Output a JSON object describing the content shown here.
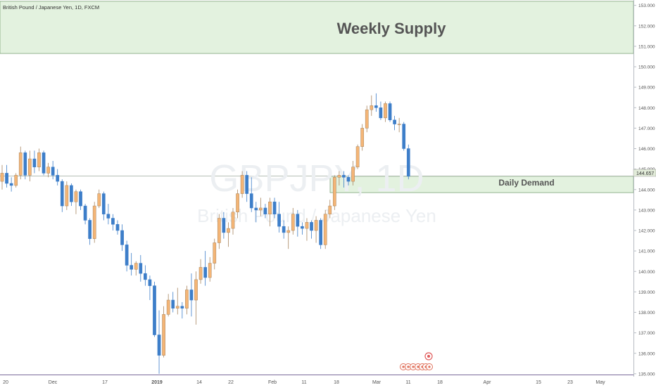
{
  "header": {
    "symbol_line": "British Pound / Japanese Yen, 1D, FXCM"
  },
  "watermark": {
    "ticker": "GBPJPY, 1D",
    "name": "British Pound / Japanese Yen"
  },
  "zones": [
    {
      "label": "Weekly Supply",
      "from": 150.65,
      "to": 153.2,
      "color": "#e3f2df"
    },
    {
      "label": "Daily Demand",
      "from": 143.85,
      "to": 144.65,
      "color": "#e3f2df"
    }
  ],
  "price_label": "144.657",
  "colors": {
    "up": "#f4b576",
    "down": "#3d7ec9",
    "zone_border": "#7fa57a"
  },
  "chart_data": {
    "type": "candlestick",
    "title": "British Pound / Japanese Yen, 1D, FXCM",
    "ylim": [
      135,
      153.2
    ],
    "y_ticks": [
      "135.000",
      "136.000",
      "137.000",
      "138.000",
      "139.000",
      "140.000",
      "141.000",
      "142.000",
      "143.000",
      "144.000",
      "145.000",
      "146.000",
      "147.000",
      "148.000",
      "149.000",
      "150.000",
      "151.000",
      "152.000",
      "153.000"
    ],
    "x_labels": [
      "20",
      "Dec",
      "17",
      "2019",
      "14",
      "22",
      "Feb",
      "11",
      "18",
      "Mar",
      "11",
      "18",
      "Apr",
      "15",
      "23",
      "May"
    ],
    "current_price": 144.657,
    "candles": [
      [
        144.4,
        145.2,
        144.0,
        144.8
      ],
      [
        144.8,
        145.2,
        144.1,
        144.3
      ],
      [
        144.3,
        144.6,
        143.9,
        144.2
      ],
      [
        144.2,
        144.8,
        144.1,
        144.7
      ],
      [
        144.7,
        146.1,
        144.5,
        145.8
      ],
      [
        145.8,
        145.9,
        144.5,
        144.7
      ],
      [
        144.7,
        145.9,
        144.4,
        145.5
      ],
      [
        145.5,
        145.9,
        144.8,
        145.1
      ],
      [
        145.1,
        146.0,
        144.9,
        145.8
      ],
      [
        145.8,
        145.9,
        144.7,
        144.8
      ],
      [
        144.8,
        145.3,
        144.6,
        145.1
      ],
      [
        145.1,
        145.4,
        144.5,
        144.7
      ],
      [
        144.7,
        145.0,
        144.2,
        144.4
      ],
      [
        144.4,
        144.5,
        142.9,
        143.2
      ],
      [
        143.2,
        144.4,
        143.0,
        144.2
      ],
      [
        144.2,
        144.3,
        143.2,
        143.4
      ],
      [
        143.4,
        144.0,
        142.8,
        143.9
      ],
      [
        143.9,
        144.0,
        143.0,
        143.2
      ],
      [
        143.2,
        143.3,
        142.3,
        142.5
      ],
      [
        142.5,
        142.6,
        141.3,
        141.6
      ],
      [
        141.6,
        143.4,
        141.4,
        143.2
      ],
      [
        143.2,
        144.0,
        143.1,
        143.8
      ],
      [
        143.8,
        143.9,
        142.5,
        142.8
      ],
      [
        142.8,
        143.3,
        142.3,
        142.6
      ],
      [
        142.6,
        142.8,
        142.0,
        142.3
      ],
      [
        142.3,
        142.5,
        141.8,
        142.0
      ],
      [
        142.0,
        142.3,
        141.0,
        141.3
      ],
      [
        141.3,
        141.5,
        140.0,
        140.3
      ],
      [
        140.3,
        140.9,
        139.8,
        140.1
      ],
      [
        140.1,
        140.5,
        139.8,
        140.4
      ],
      [
        140.4,
        140.8,
        139.5,
        139.9
      ],
      [
        139.9,
        140.3,
        139.3,
        139.6
      ],
      [
        139.6,
        139.8,
        138.6,
        139.3
      ],
      [
        139.3,
        139.5,
        136.8,
        136.9
      ],
      [
        136.9,
        138.1,
        135.0,
        135.9
      ],
      [
        135.9,
        138.3,
        135.8,
        137.9
      ],
      [
        137.9,
        138.9,
        137.8,
        138.6
      ],
      [
        138.6,
        139.0,
        138.0,
        138.2
      ],
      [
        138.2,
        139.2,
        137.9,
        138.3
      ],
      [
        138.3,
        138.5,
        137.7,
        138.2
      ],
      [
        138.2,
        139.3,
        137.9,
        139.1
      ],
      [
        139.1,
        139.9,
        137.8,
        138.6
      ],
      [
        138.6,
        140.0,
        137.4,
        139.6
      ],
      [
        139.6,
        140.6,
        139.4,
        140.2
      ],
      [
        140.2,
        141.0,
        139.3,
        139.7
      ],
      [
        139.7,
        140.7,
        139.5,
        140.4
      ],
      [
        140.4,
        141.6,
        140.1,
        141.4
      ],
      [
        141.4,
        142.8,
        141.1,
        142.6
      ],
      [
        142.6,
        142.9,
        141.6,
        141.9
      ],
      [
        141.9,
        142.4,
        141.2,
        142.1
      ],
      [
        142.1,
        143.1,
        141.8,
        142.9
      ],
      [
        142.9,
        144.0,
        142.6,
        143.8
      ],
      [
        143.8,
        144.9,
        143.6,
        144.7
      ],
      [
        144.7,
        144.9,
        143.4,
        143.8
      ],
      [
        143.8,
        144.6,
        142.9,
        143.1
      ],
      [
        143.1,
        143.4,
        142.4,
        143.0
      ],
      [
        143.0,
        143.6,
        142.7,
        143.1
      ],
      [
        143.1,
        143.3,
        142.6,
        142.8
      ],
      [
        142.8,
        143.6,
        142.2,
        143.4
      ],
      [
        143.4,
        143.6,
        142.6,
        142.8
      ],
      [
        142.8,
        143.4,
        141.9,
        142.2
      ],
      [
        142.2,
        142.5,
        141.6,
        141.9
      ],
      [
        141.9,
        142.2,
        141.1,
        142.0
      ],
      [
        142.0,
        143.1,
        141.8,
        142.8
      ],
      [
        142.8,
        143.0,
        141.7,
        142.2
      ],
      [
        142.2,
        142.4,
        141.8,
        142.1
      ],
      [
        142.1,
        142.6,
        141.5,
        142.4
      ],
      [
        142.4,
        142.5,
        141.6,
        142.0
      ],
      [
        142.0,
        142.7,
        141.4,
        142.5
      ],
      [
        142.5,
        142.6,
        141.1,
        141.3
      ],
      [
        141.3,
        143.0,
        141.1,
        142.8
      ],
      [
        142.8,
        143.5,
        142.6,
        143.2
      ],
      [
        143.2,
        144.7,
        143.0,
        144.6
      ],
      [
        144.6,
        144.9,
        144.2,
        144.7
      ],
      [
        144.7,
        144.9,
        144.1,
        144.6
      ],
      [
        144.6,
        144.7,
        144.2,
        144.4
      ],
      [
        144.4,
        145.4,
        144.2,
        145.1
      ],
      [
        145.1,
        146.2,
        145.0,
        146.1
      ],
      [
        146.1,
        147.2,
        145.9,
        147.0
      ],
      [
        147.0,
        148.1,
        146.8,
        147.9
      ],
      [
        147.9,
        148.6,
        147.6,
        148.1
      ],
      [
        148.1,
        148.7,
        147.8,
        148.0
      ],
      [
        148.0,
        148.3,
        147.4,
        147.5
      ],
      [
        147.5,
        148.3,
        147.3,
        148.2
      ],
      [
        148.2,
        148.3,
        147.3,
        147.4
      ],
      [
        147.4,
        147.6,
        146.9,
        147.2
      ],
      [
        147.2,
        147.5,
        146.8,
        147.2
      ],
      [
        147.2,
        147.3,
        145.9,
        146.0
      ],
      [
        146.0,
        146.2,
        144.5,
        144.65
      ]
    ],
    "indicators": [
      "rabbit-face",
      "rabbit-face",
      "rabbit-face",
      "7",
      "flag",
      "2",
      "3",
      "2",
      "4"
    ]
  }
}
